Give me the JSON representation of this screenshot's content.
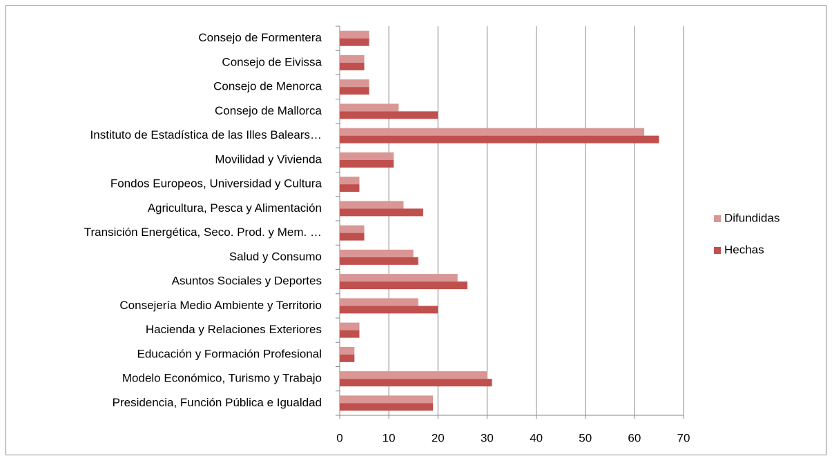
{
  "chart_data": {
    "type": "barh",
    "categories": [
      "Consejo de Formentera",
      "Consejo de Eivissa",
      "Consejo de Menorca",
      "Consejo de Mallorca",
      "Instituto de Estadística de las Illes Balears…",
      "Movilidad y Vivienda",
      "Fondos Europeos, Universidad y Cultura",
      "Agricultura, Pesca y Alimentación",
      "Transición Energética, Seco. Prod. y Mem. …",
      "Salud y Consumo",
      "Asuntos Sociales y Deportes",
      "Consejería Medio Ambiente y Territorio",
      "Hacienda y Relaciones Exteriores",
      "Educación y Formación Profesional",
      "Modelo Económico, Turismo y Trabajo",
      "Presidencia, Función Pública e Igualdad"
    ],
    "series": [
      {
        "name": "Difundidas",
        "color": "#d99694",
        "values": [
          6,
          5,
          6,
          12,
          62,
          11,
          4,
          13,
          5,
          15,
          24,
          16,
          4,
          3,
          30,
          19
        ]
      },
      {
        "name": "Hechas",
        "color": "#c0504d",
        "values": [
          6,
          5,
          6,
          20,
          65,
          11,
          4,
          17,
          5,
          16,
          26,
          20,
          4,
          3,
          31,
          19
        ]
      }
    ],
    "xlim": [
      0,
      70
    ],
    "xticks": [
      0,
      10,
      20,
      30,
      40,
      50,
      60,
      70
    ],
    "grid": true,
    "legend": "right"
  }
}
